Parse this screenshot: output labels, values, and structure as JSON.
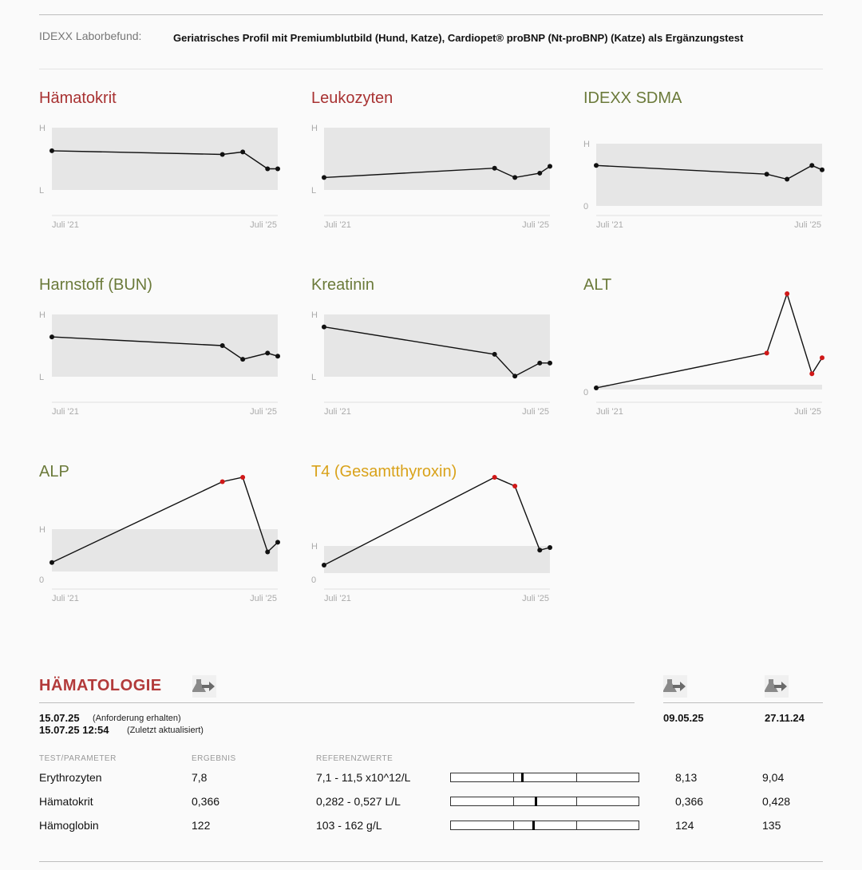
{
  "report": {
    "label": "IDEXX Laborbefund:",
    "value": "Geriatrisches Profil mit Premiumblutbild (Hund, Katze), Cardiopet® proBNP (Nt-proBNP) (Katze) als Ergänzungstest"
  },
  "charts": [
    {
      "title": "Hämatokrit",
      "color": "#a83232",
      "y_hi": "H",
      "y_lo": "L",
      "x_start": "Juli '21",
      "x_end": "Juli '25",
      "points": [
        [
          0,
          0.37
        ],
        [
          0.755,
          0.43
        ],
        [
          0.845,
          0.39
        ],
        [
          0.955,
          0.66
        ],
        [
          1.0,
          0.66
        ]
      ],
      "flags": [
        0,
        0,
        0,
        0,
        0
      ]
    },
    {
      "title": "Leukozyten",
      "color": "#a83232",
      "y_hi": "H",
      "y_lo": "L",
      "x_start": "Juli '21",
      "x_end": "Juli '25",
      "points": [
        [
          0,
          0.8
        ],
        [
          0.755,
          0.65
        ],
        [
          0.845,
          0.8
        ],
        [
          0.955,
          0.73
        ],
        [
          1.0,
          0.62
        ]
      ],
      "flags": [
        0,
        0,
        0,
        0,
        0
      ]
    },
    {
      "title": "IDEXX SDMA",
      "color": "#6b7a3a",
      "y_hi": "H",
      "y_lo": "0",
      "x_start": "Juli '21",
      "x_end": "Juli '25",
      "points": [
        [
          0,
          0.35
        ],
        [
          0.755,
          0.49
        ],
        [
          0.845,
          0.57
        ],
        [
          0.955,
          0.35
        ],
        [
          1.0,
          0.42
        ]
      ],
      "flags": [
        0,
        0,
        0,
        0,
        0
      ]
    },
    {
      "title": "Harnstoff (BUN)",
      "color": "#6b7a3a",
      "y_hi": "H",
      "y_lo": "L",
      "x_start": "Juli '21",
      "x_end": "Juli '25",
      "points": [
        [
          0,
          0.36
        ],
        [
          0.755,
          0.5
        ],
        [
          0.845,
          0.72
        ],
        [
          0.955,
          0.62
        ],
        [
          1.0,
          0.67
        ]
      ],
      "flags": [
        0,
        0,
        0,
        0,
        0
      ]
    },
    {
      "title": "Kreatinin",
      "color": "#6b7a3a",
      "y_hi": "H",
      "y_lo": "L",
      "x_start": "Juli '21",
      "x_end": "Juli '25",
      "points": [
        [
          0,
          0.2
        ],
        [
          0.755,
          0.64
        ],
        [
          0.845,
          0.99
        ],
        [
          0.955,
          0.78
        ],
        [
          1.0,
          0.78
        ]
      ],
      "flags": [
        0,
        0,
        0,
        0,
        0
      ]
    },
    {
      "title": "ALT",
      "color": "#6b7a3a",
      "y_hi": "",
      "y_lo": "0",
      "x_start": "Juli '21",
      "x_end": "Juli '25",
      "points": [
        [
          0,
          1.0
        ],
        [
          0.755,
          0.63
        ],
        [
          0.845,
          0.0
        ],
        [
          0.955,
          0.85
        ],
        [
          1.0,
          0.68
        ]
      ],
      "flags": [
        0,
        1,
        1,
        1,
        1
      ]
    },
    {
      "title": "ALP",
      "color": "#6b7a3a",
      "y_hi": "H",
      "y_lo": "0",
      "x_start": "Juli '21",
      "x_end": "Juli '25",
      "points": [
        [
          0,
          0.97
        ],
        [
          0.755,
          0.05
        ],
        [
          0.845,
          0.0
        ],
        [
          0.955,
          0.85
        ],
        [
          1.0,
          0.74
        ]
      ],
      "flags": [
        0,
        1,
        1,
        0,
        0
      ]
    },
    {
      "title": "T4 (Gesamtthyroxin)",
      "color": "#d9a21a",
      "y_hi": "H",
      "y_lo": "0",
      "x_start": "Juli '21",
      "x_end": "Juli '25",
      "points": [
        [
          0,
          1.0
        ],
        [
          0.755,
          0.0
        ],
        [
          0.845,
          0.1
        ],
        [
          0.955,
          0.83
        ],
        [
          1.0,
          0.8
        ]
      ],
      "flags": [
        0,
        1,
        1,
        0,
        0
      ]
    }
  ],
  "section": {
    "title": "HÄMATOLOGIE",
    "received_date": "15.07.25",
    "received_note": "(Anforderung erhalten)",
    "updated_date": "15.07.25 12:54",
    "updated_note": "(Zuletzt aktualisiert)",
    "prev_dates": [
      "09.05.25",
      "27.11.24"
    ],
    "col_test": "TEST/PARAMETER",
    "col_result": "ERGEBNIS",
    "col_ref": "REFERENZWERTE"
  },
  "rows": [
    {
      "name": "Erythrozyten",
      "result": "7,8",
      "ref": "7,1 - 11,5 x10^12/L",
      "marker": 0.38,
      "prev": [
        "8,13",
        "9,04"
      ]
    },
    {
      "name": "Hämatokrit",
      "result": "0,366",
      "ref": "0,282 - 0,527 L/L",
      "marker": 0.45,
      "prev": [
        "0,366",
        "0,428"
      ]
    },
    {
      "name": "Hämoglobin",
      "result": "122",
      "ref": "103 - 162 g/L",
      "marker": 0.44,
      "prev": [
        "124",
        "135"
      ]
    }
  ]
}
